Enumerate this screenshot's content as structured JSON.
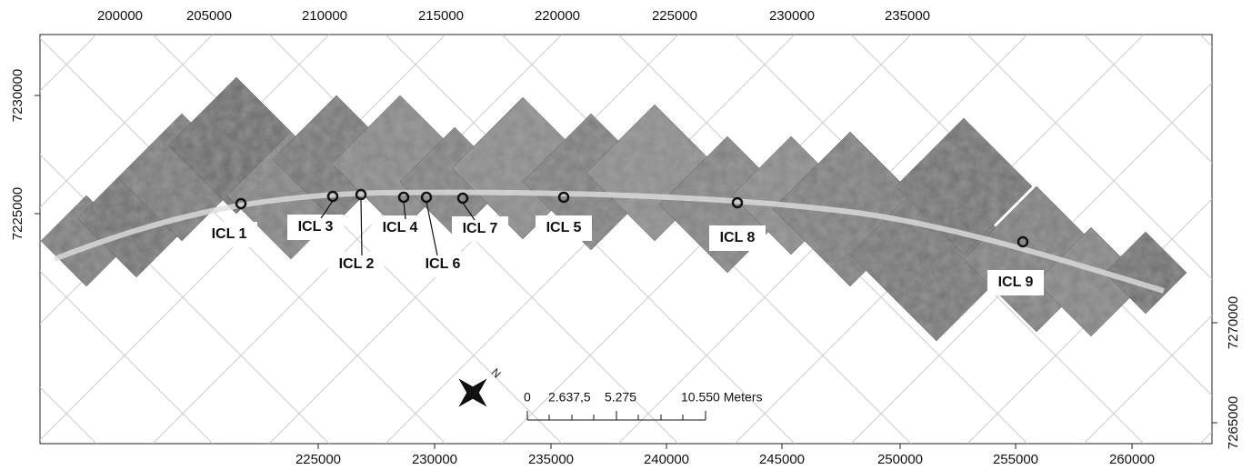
{
  "map": {
    "top_ticks": [
      200000,
      205000,
      210000,
      215000,
      220000,
      225000,
      230000,
      235000
    ],
    "bottom_ticks": [
      225000,
      230000,
      235000,
      240000,
      245000,
      250000,
      255000,
      260000
    ],
    "left_ticks": [
      7230000,
      7225000
    ],
    "right_ticks": [
      7270000,
      7265000
    ],
    "sites": [
      "ICL 1",
      "ICL 3",
      "ICL 2",
      "ICL 4",
      "ICL 6",
      "ICL 7",
      "ICL 5",
      "ICL 8",
      "ICL 9"
    ],
    "north_label": "N",
    "scale_bar": [
      "0",
      "2.637,5",
      "5.275",
      "10.550 Meters"
    ]
  }
}
